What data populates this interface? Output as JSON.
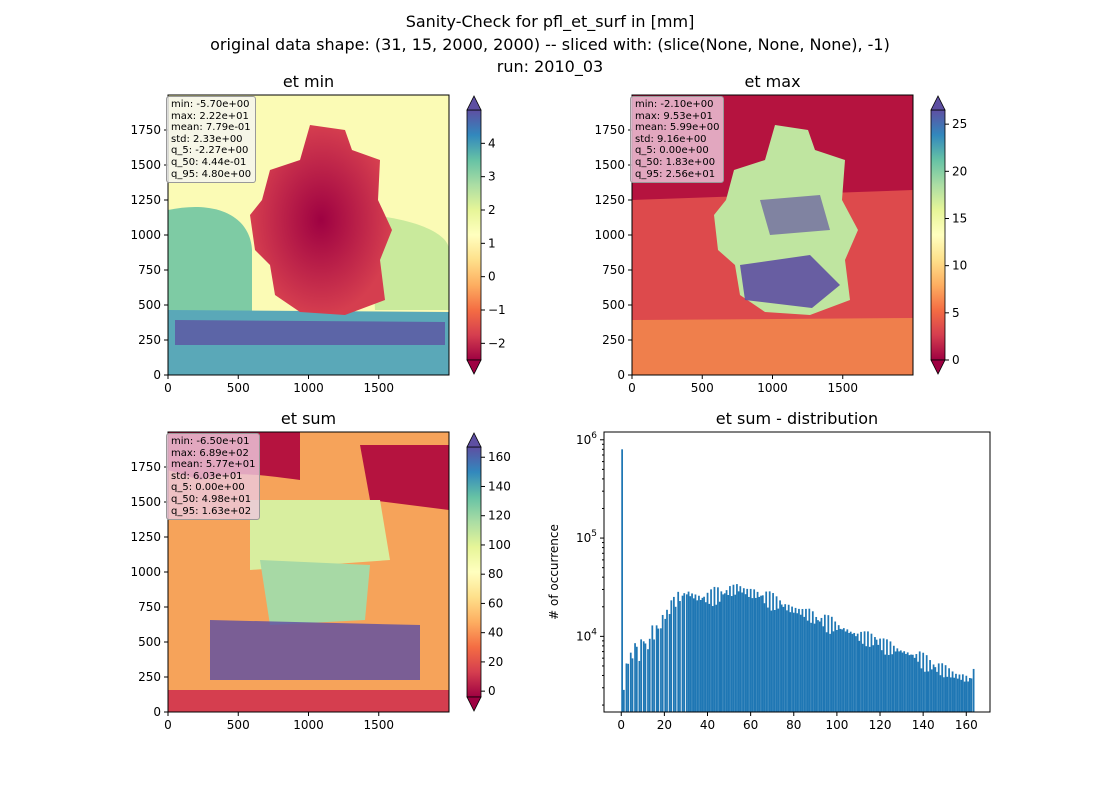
{
  "suptitle": {
    "line1": "Sanity-Check for pfl_et_surf in [mm]",
    "line2": "original data shape: (31, 15, 2000, 2000) -- sliced with: (slice(None, None, None), -1)",
    "line3": "run: 2010_03"
  },
  "colors": {
    "spectral": [
      "#9e0142",
      "#d53e4f",
      "#f46d43",
      "#fdae61",
      "#fee08b",
      "#ffffbf",
      "#e6f598",
      "#abdda4",
      "#66c2a5",
      "#3288bd",
      "#5e4fa2"
    ],
    "histogram_bar": "#1f77b4"
  },
  "chart_data": [
    {
      "type": "heatmap",
      "title": "et min",
      "xlim": [
        0,
        2000
      ],
      "ylim": [
        0,
        2000
      ],
      "xticks": [
        0,
        500,
        1000,
        1500
      ],
      "yticks": [
        0,
        250,
        500,
        750,
        1000,
        1250,
        1500,
        1750
      ],
      "colorbar": {
        "vmin": -2.5,
        "vmax": 5,
        "ticks": [
          -2,
          -1,
          0,
          1,
          2,
          3,
          4
        ],
        "extend": "both"
      },
      "stats": [
        "min: -5.70e+00",
        "max: 2.22e+01",
        "mean: 7.79e-01",
        "std: 2.33e+00",
        "q_5: -2.27e+00",
        "q_50: 4.44e-01",
        "q_95: 4.80e+00"
      ]
    },
    {
      "type": "heatmap",
      "title": "et max",
      "xlim": [
        0,
        2000
      ],
      "ylim": [
        0,
        2000
      ],
      "xticks": [
        0,
        500,
        1000,
        1500
      ],
      "yticks": [
        0,
        250,
        500,
        750,
        1000,
        1250,
        1500,
        1750
      ],
      "colorbar": {
        "vmin": 0,
        "vmax": 26.5,
        "ticks": [
          0,
          5,
          10,
          15,
          20,
          25
        ],
        "extend": "both"
      },
      "stats": [
        "min: -2.10e+00",
        "max: 9.53e+01",
        "mean: 5.99e+00",
        "std: 9.16e+00",
        "q_5: 0.00e+00",
        "q_50: 1.83e+00",
        "q_95: 2.56e+01"
      ]
    },
    {
      "type": "heatmap",
      "title": "et sum",
      "xlim": [
        0,
        2000
      ],
      "ylim": [
        0,
        2000
      ],
      "xticks": [
        0,
        500,
        1000,
        1500
      ],
      "yticks": [
        0,
        250,
        500,
        750,
        1000,
        1250,
        1500,
        1750
      ],
      "colorbar": {
        "vmin": -4,
        "vmax": 167,
        "ticks": [
          0,
          20,
          40,
          60,
          80,
          100,
          120,
          140,
          160
        ],
        "extend": "both"
      },
      "stats": [
        "min: -6.50e+01",
        "max: 6.89e+02",
        "mean: 5.77e+01",
        "std: 6.03e+01",
        "q_5: 0.00e+00",
        "q_50: 4.98e+01",
        "q_95: 1.63e+02"
      ]
    },
    {
      "type": "bar",
      "title": "et sum - distribution",
      "ylabel": "# of occurrence",
      "yscale": "log",
      "xlim": [
        -8,
        171
      ],
      "ylim": [
        1700,
        1200000
      ],
      "xticks": [
        0,
        20,
        40,
        60,
        80,
        100,
        120,
        140,
        160
      ],
      "yticks": [
        10000,
        100000,
        1000000
      ],
      "ytick_labels": [
        {
          "base": "10",
          "exp": "4"
        },
        {
          "base": "10",
          "exp": "5"
        },
        {
          "base": "10",
          "exp": "6"
        }
      ],
      "bin_width": 0.81,
      "bins_x": [
        0,
        0.8,
        2,
        4,
        6,
        8,
        10,
        12,
        14,
        16,
        18,
        20,
        22,
        24,
        26,
        28,
        30,
        34,
        38,
        42,
        46,
        50,
        54,
        58,
        62,
        66,
        70,
        74,
        78,
        82,
        86,
        90,
        94,
        98,
        102,
        106,
        110,
        114,
        118,
        122,
        126,
        130,
        134,
        138,
        142,
        146,
        150,
        154,
        158,
        162,
        163
      ],
      "bins_y": [
        800000,
        3000,
        5000,
        6000,
        8600,
        7000,
        9000,
        7500,
        11000,
        12000,
        14000,
        16000,
        19000,
        22000,
        25000,
        27000,
        28000,
        25000,
        24000,
        26000,
        27000,
        29000,
        31000,
        28000,
        27000,
        25000,
        23000,
        21000,
        19000,
        18000,
        17000,
        15000,
        14000,
        13000,
        12000,
        11000,
        10000,
        9500,
        9000,
        8000,
        7500,
        7000,
        6500,
        6000,
        5200,
        4800,
        4500,
        4000,
        3800,
        3600,
        4500
      ]
    }
  ]
}
